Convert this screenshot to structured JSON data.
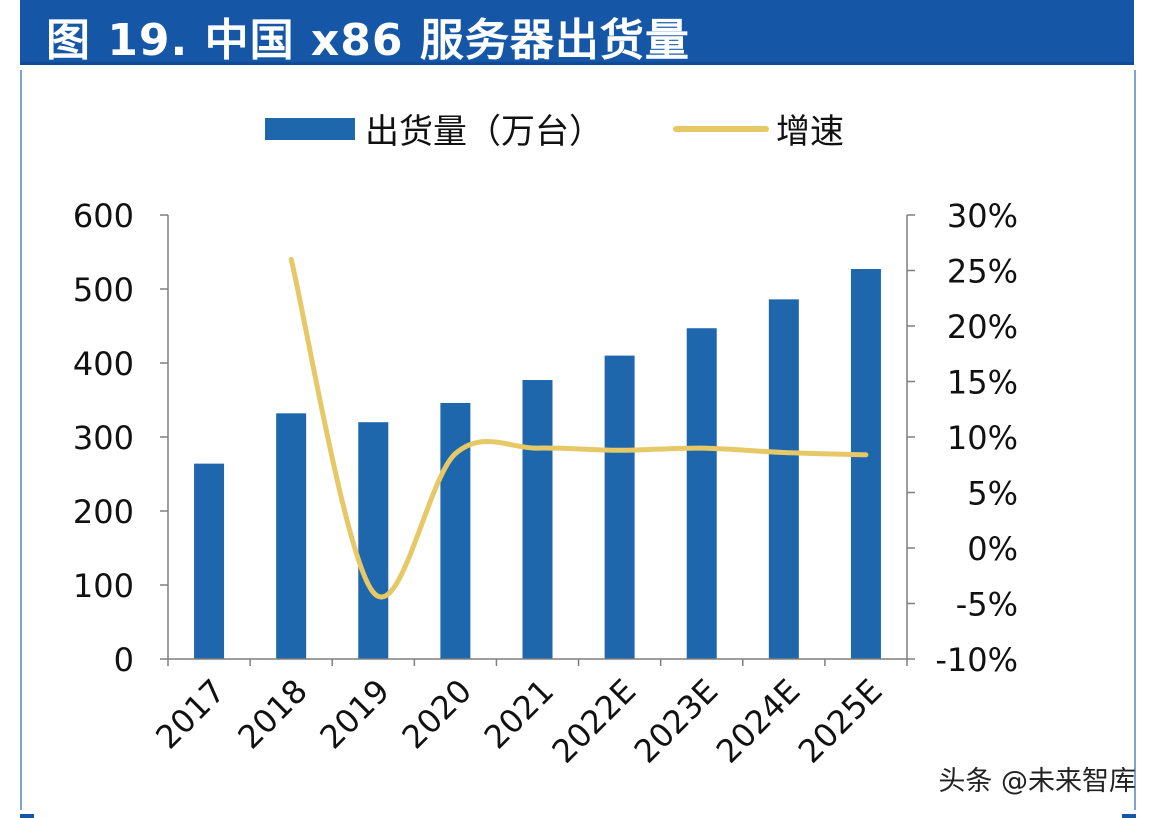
{
  "header": {
    "title": "图 19. 中国 x86 服务器出货量"
  },
  "watermark": "头条 @未来智库",
  "colors": {
    "header_bg": "#1557a6",
    "bar": "#1f67ad",
    "line": "#e6c966",
    "axis": "#7f7f7f"
  },
  "chart_data": {
    "type": "bar",
    "categories": [
      "2017",
      "2018",
      "2019",
      "2020",
      "2021",
      "2022E",
      "2023E",
      "2024E",
      "2025E"
    ],
    "series": [
      {
        "name": "出货量（万台）",
        "type": "bar",
        "axis": "left",
        "values": [
          264,
          332,
          320,
          346,
          377,
          410,
          447,
          486,
          527
        ]
      },
      {
        "name": "增速",
        "type": "line",
        "axis": "right",
        "smooth": true,
        "values": [
          null,
          26.0,
          -4.0,
          8.5,
          9.0,
          8.8,
          9.0,
          8.6,
          8.4
        ]
      }
    ],
    "y_left": {
      "lim": [
        0,
        600
      ],
      "ticks": [
        0,
        100,
        200,
        300,
        400,
        500,
        600
      ],
      "tick_labels": [
        "0",
        "100",
        "200",
        "300",
        "400",
        "500",
        "600"
      ]
    },
    "y_right": {
      "lim": [
        -10,
        30
      ],
      "ticks": [
        -10,
        -5,
        0,
        5,
        10,
        15,
        20,
        25,
        30
      ],
      "tick_labels": [
        "-10%",
        "-5%",
        "0%",
        "5%",
        "10%",
        "15%",
        "20%",
        "25%",
        "30%"
      ]
    },
    "legend": {
      "position": "top",
      "entries": [
        {
          "label": "出货量（万台）",
          "swatch": "bar"
        },
        {
          "label": "增速",
          "swatch": "line"
        }
      ]
    },
    "grid": false
  }
}
